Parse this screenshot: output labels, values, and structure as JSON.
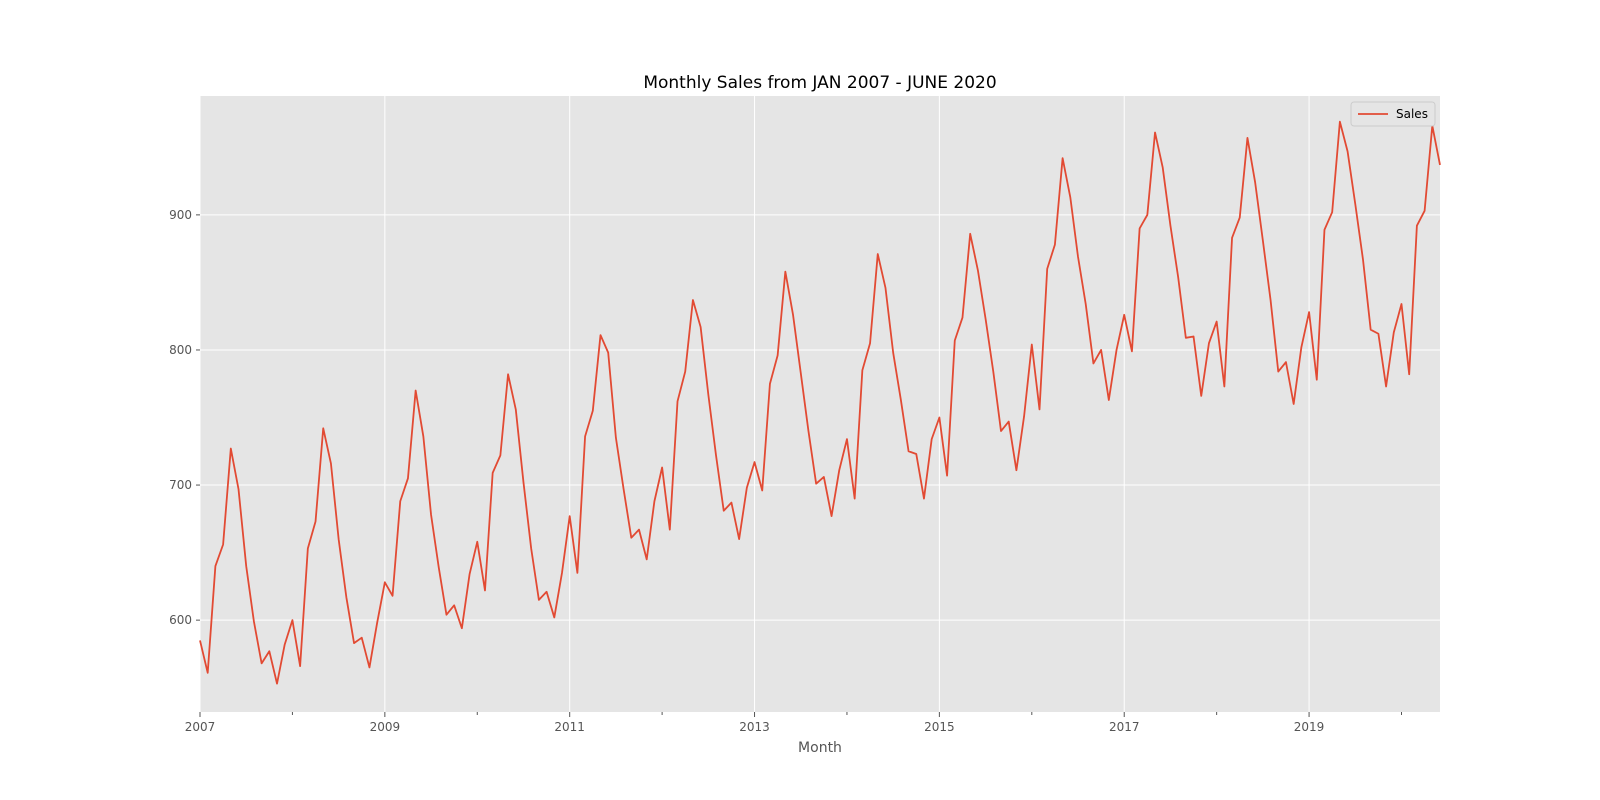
{
  "chart_data": {
    "type": "line",
    "title": "Monthly Sales from JAN 2007 - JUNE 2020",
    "xlabel": "Month",
    "ylabel": "",
    "x_start": "2007-01",
    "x_tick_labels": [
      "2007",
      "2009",
      "2011",
      "2013",
      "2015",
      "2017",
      "2019"
    ],
    "y_ticks": [
      600,
      700,
      800,
      900
    ],
    "ylim": [
      532,
      988
    ],
    "grid": true,
    "legend_position": "top-right",
    "series": [
      {
        "name": "Sales",
        "color": "#E24A33",
        "values": [
          585,
          561,
          640,
          656,
          727,
          697,
          640,
          599,
          568,
          577,
          553,
          582,
          600,
          566,
          653,
          673,
          742,
          716,
          660,
          617,
          583,
          587,
          565,
          598,
          628,
          618,
          688,
          705,
          770,
          736,
          678,
          639,
          604,
          611,
          594,
          634,
          658,
          622,
          709,
          722,
          782,
          756,
          702,
          653,
          615,
          621,
          602,
          635,
          677,
          635,
          736,
          755,
          811,
          798,
          735,
          697,
          661,
          667,
          645,
          688,
          713,
          667,
          762,
          784,
          837,
          817,
          767,
          722,
          681,
          687,
          660,
          698,
          717,
          696,
          775,
          796,
          858,
          826,
          783,
          740,
          701,
          706,
          677,
          711,
          734,
          690,
          785,
          805,
          871,
          846,
          798,
          763,
          725,
          723,
          690,
          734,
          750,
          707,
          807,
          824,
          886,
          859,
          823,
          784,
          740,
          747,
          711,
          751,
          804,
          756,
          860,
          878,
          942,
          913,
          869,
          834,
          790,
          800,
          763,
          800,
          826,
          799,
          890,
          900,
          961,
          935,
          892,
          854,
          809,
          810,
          766,
          805,
          821,
          773,
          883,
          898,
          957,
          924,
          881,
          837,
          784,
          791,
          760,
          802,
          828,
          778,
          889,
          902,
          969,
          947,
          908,
          867,
          815,
          812,
          773,
          813,
          834,
          782,
          892,
          903,
          966,
          937
        ]
      }
    ]
  }
}
